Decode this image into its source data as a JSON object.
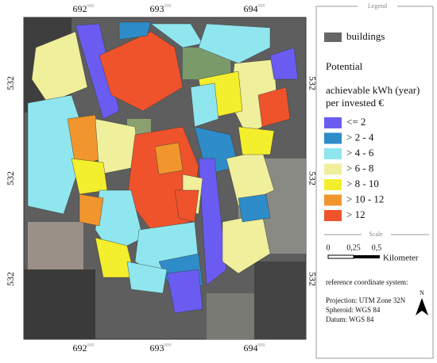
{
  "map": {
    "x_labels": [
      {
        "main": "692",
        "sup": "000"
      },
      {
        "main": "693",
        "sup": "000"
      },
      {
        "main": "694",
        "sup": "000"
      }
    ],
    "y_labels": [
      "532",
      "532",
      "532"
    ],
    "legend": {
      "title": "Legend",
      "buildings": "buildings",
      "heading": "Potential",
      "subheading_lines": [
        "achievable kWh (year)",
        "per invested €"
      ],
      "classes": [
        {
          "label": "<= 2",
          "color": "#6a5cf0"
        },
        {
          "label": "> 2 - 4",
          "color": "#2e8cc8"
        },
        {
          "label": "> 4 - 6",
          "color": "#8fe6ee"
        },
        {
          "label": "> 6 - 8",
          "color": "#f0ef9c"
        },
        {
          "label": "> 8 - 10",
          "color": "#f4ef2c"
        },
        {
          "label": "> 10 - 12",
          "color": "#f0962c"
        },
        {
          "label": "> 12",
          "color": "#ee532c"
        }
      ]
    },
    "scale": {
      "title": "Scale",
      "labels": [
        "0",
        "0,25",
        "0,5"
      ],
      "unit": "Kilometer"
    },
    "reference": {
      "title": "reference coordinate system:",
      "lines": [
        "Projection: UTM Zone 32N",
        "Spheroid: WGS 84",
        "Datum: WGS 84"
      ]
    },
    "north": "N"
  }
}
